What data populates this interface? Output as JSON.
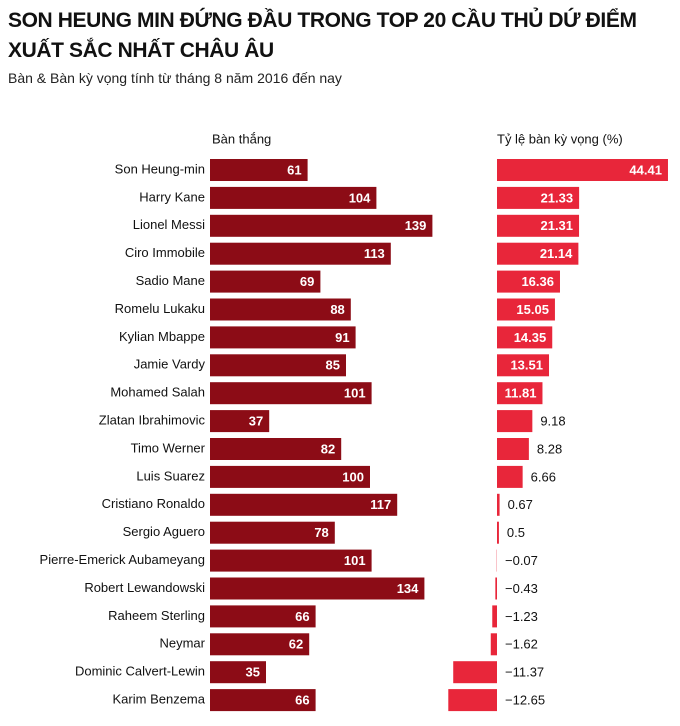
{
  "chart_data": [
    {
      "type": "bar",
      "orientation": "horizontal",
      "title": "SON HEUNG MIN ĐỨNG ĐẦU TRONG TOP 20 CẦU THỦ DỨ ĐIỂM XUẤT SẮC NHẤT CHÂU ÂU",
      "subtitle": "Bàn & Bàn kỳ vọng tính từ tháng 8 năm 2016 đến nay",
      "axis_label": "Bàn thắng",
      "categories": [
        "Son Heung-min",
        "Harry Kane",
        "Lionel Messi",
        "Ciro Immobile",
        "Sadio Mane",
        "Romelu Lukaku",
        "Kylian Mbappe",
        "Jamie Vardy",
        "Mohamed Salah",
        "Zlatan Ibrahimovic",
        "Timo Werner",
        "Luis Suarez",
        "Cristiano Ronaldo",
        "Sergio Aguero",
        "Pierre-Emerick Aubameyang",
        "Robert Lewandowski",
        "Raheem Sterling",
        "Neymar",
        "Dominic Calvert-Lewin",
        "Karim Benzema"
      ],
      "values": [
        61,
        104,
        139,
        113,
        69,
        88,
        91,
        85,
        101,
        37,
        82,
        100,
        117,
        78,
        101,
        134,
        66,
        62,
        35,
        66
      ],
      "color": "#8c0c16"
    },
    {
      "type": "bar",
      "orientation": "horizontal",
      "axis_label": "Tỷ lệ bàn kỳ vọng (%)",
      "values": [
        44.41,
        21.33,
        21.31,
        21.14,
        16.36,
        15.05,
        14.35,
        13.51,
        11.81,
        9.18,
        8.28,
        6.66,
        0.67,
        0.5,
        -0.07,
        -0.43,
        -1.23,
        -1.62,
        -11.37,
        -12.65
      ],
      "value_labels": [
        "44.41",
        "21.33",
        "21.31",
        "21.14",
        "16.36",
        "15.05",
        "14.35",
        "13.51",
        "11.81",
        "9.18",
        "8.28",
        "6.66",
        "0.67",
        "0.5",
        "−0.07",
        "−0.43",
        "−1.23",
        "−1.62",
        "−11.37",
        "−12.65"
      ],
      "color": "#e8263a"
    }
  ]
}
